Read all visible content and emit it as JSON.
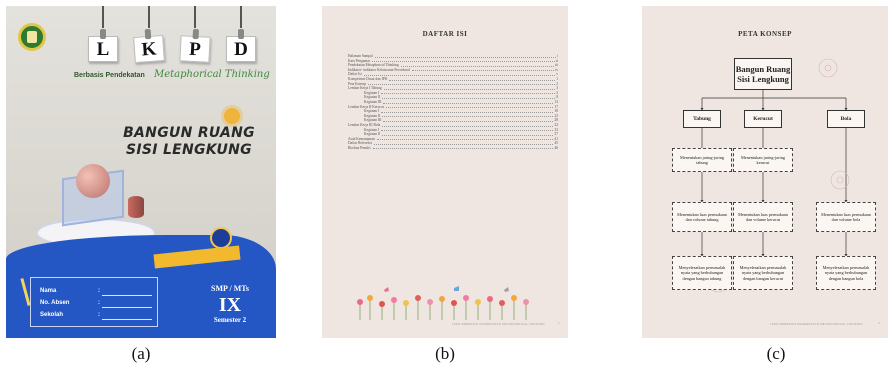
{
  "captions": [
    "(a)",
    "(b)",
    "(c)"
  ],
  "cover": {
    "letters": [
      "L",
      "K",
      "P",
      "D"
    ],
    "subtitle_prefix": "Berbasis Pendekatan",
    "subtitle_script": "Metaphorical Thinking",
    "title_line1": "BANGUN RUANG",
    "title_line2": "SISI LENGKUNG",
    "form_labels": [
      "Nama",
      "No. Absen",
      "Sekolah"
    ],
    "form_colon": ":",
    "school_level": "SMP / MTs",
    "grade": "IX",
    "semester": "Semester 2",
    "colors": {
      "paper": "#dcdad3",
      "blue": "#2456c4",
      "gold": "#f2b92e",
      "green": "#2f7a2f"
    }
  },
  "toc": {
    "title": "DAFTAR ISI",
    "entries": [
      {
        "label": "Halaman Sampul",
        "page": "i",
        "indent": false
      },
      {
        "label": "Kata Pengantar",
        "page": "ii",
        "indent": false
      },
      {
        "label": "Pendekatan Metaphorical Thinking",
        "page": "iii",
        "indent": false
      },
      {
        "label": "Indikator- indikator Kelancaran Prosedural",
        "page": "iv",
        "indent": false
      },
      {
        "label": "Daftar Isi",
        "page": "v",
        "indent": false
      },
      {
        "label": "Kompetensi Dasar dan IPK",
        "page": "1",
        "indent": false
      },
      {
        "label": "Peta Konsep",
        "page": "2",
        "indent": false
      },
      {
        "label": "Lembar Kerja I Tabung",
        "page": "3",
        "indent": false
      },
      {
        "label": "Kegiatan I",
        "page": "3",
        "indent": true
      },
      {
        "label": "Kegiatan II",
        "page": "8",
        "indent": true
      },
      {
        "label": "Kegiatan III",
        "page": "13",
        "indent": true
      },
      {
        "label": "Lembar Kerja II Kerucut",
        "page": "17",
        "indent": false
      },
      {
        "label": "Kegiatan I",
        "page": "18",
        "indent": true
      },
      {
        "label": "Kegiatan II",
        "page": "23",
        "indent": true
      },
      {
        "label": "Kegiatan III",
        "page": "28",
        "indent": true
      },
      {
        "label": "Lembar Kerja III Bola",
        "page": "32",
        "indent": false
      },
      {
        "label": "Kegiatan I",
        "page": "33",
        "indent": true
      },
      {
        "label": "Kegiatan II",
        "page": "37",
        "indent": true
      },
      {
        "label": "Asah Kemampuan",
        "page": "41",
        "indent": false
      },
      {
        "label": "Daftar Referensi",
        "page": "45",
        "indent": false
      },
      {
        "label": "Biodata Penulis",
        "page": "46",
        "indent": false
      }
    ],
    "footer": "LKPD BERBASIS PENDEKATAN METAPHORICAL THINKING",
    "page_number": "v"
  },
  "concept_map": {
    "title": "PETA KONSEP",
    "root": "Bangun Ruang Sisi Lengkung",
    "branches": [
      {
        "name": "Tabung",
        "boxes": [
          "Menentukan jaring-jaring tabung",
          "Menentukan luas permukaan dan volume tabung",
          "Menyelesaikan permasalah nyata yang berhubungan dengan bangun tabung"
        ]
      },
      {
        "name": "Kerucut",
        "boxes": [
          "Menentukan jaring-jaring kerucut",
          "Menentukan luas permukaan dan volume kerucut",
          "Menyelesaikan permasalah nyata yang berhubungan dengan bangun kerucut"
        ]
      },
      {
        "name": "Bola",
        "boxes": [
          "Menentukan luas permukaan dan volume bola",
          "Menyelesaikan permasalah nyata yang berhubungan dengan bangun bola"
        ]
      }
    ],
    "footer": "LKPD BERBASIS PENDEKATAN METAPHORICAL THINKING",
    "page_number": "2"
  }
}
